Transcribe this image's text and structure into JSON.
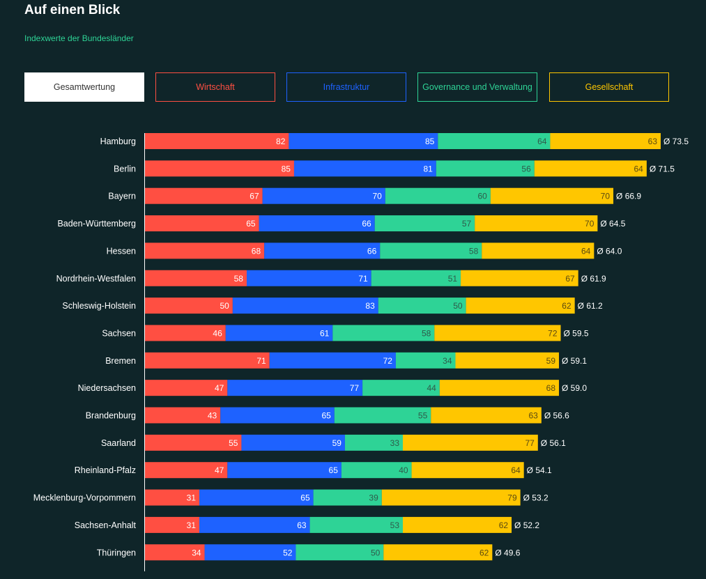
{
  "header": {
    "title": "Auf einen Blick",
    "subtitle": "Indexwerte der Bundesländer"
  },
  "tabs": [
    {
      "label": "Gesamtwertung",
      "color": "#ffffff",
      "active": true
    },
    {
      "label": "Wirtschaft",
      "color": "#ff4f42",
      "active": false
    },
    {
      "label": "Infrastruktur",
      "color": "#1e62ff",
      "active": false
    },
    {
      "label": "Governance und Verwaltung",
      "color": "#2ed396",
      "active": false
    },
    {
      "label": "Gesellschaft",
      "color": "#ffc600",
      "active": false
    }
  ],
  "chart_data": {
    "type": "bar",
    "stacked": true,
    "orientation": "horizontal",
    "grid": false,
    "legend": "top",
    "average_prefix": "Ø",
    "categories": [
      "Hamburg",
      "Berlin",
      "Bayern",
      "Baden-Württemberg",
      "Hessen",
      "Nordrhein-Westfalen",
      "Schleswig-Holstein",
      "Sachsen",
      "Bremen",
      "Niedersachsen",
      "Brandenburg",
      "Saarland",
      "Rheinland-Pfalz",
      "Mecklenburg-Vorpommern",
      "Sachsen-Anhalt",
      "Thüringen"
    ],
    "series": [
      {
        "name": "Wirtschaft",
        "color": "#ff4f42",
        "label_color": "#ffffff",
        "values": [
          82,
          85,
          67,
          65,
          68,
          58,
          50,
          46,
          71,
          47,
          43,
          55,
          47,
          31,
          31,
          34
        ]
      },
      {
        "name": "Infrastruktur",
        "color": "#1e62ff",
        "label_color": "#ffffff",
        "values": [
          85,
          81,
          70,
          66,
          66,
          71,
          83,
          61,
          72,
          77,
          65,
          59,
          65,
          65,
          63,
          52
        ]
      },
      {
        "name": "Governance und Verwaltung",
        "color": "#2ed396",
        "label_color": "#2f5a4a",
        "values": [
          64,
          56,
          60,
          57,
          58,
          51,
          50,
          58,
          34,
          44,
          55,
          33,
          40,
          39,
          53,
          50
        ]
      },
      {
        "name": "Gesellschaft",
        "color": "#ffc600",
        "label_color": "#5a4a10",
        "values": [
          63,
          64,
          70,
          70,
          64,
          67,
          62,
          72,
          59,
          68,
          63,
          77,
          64,
          79,
          62,
          62
        ]
      }
    ],
    "averages": [
      "73.5",
      "71.5",
      "66.9",
      "64.5",
      "64.0",
      "61.9",
      "61.2",
      "59.5",
      "59.1",
      "59.0",
      "56.6",
      "56.1",
      "54.1",
      "53.2",
      "52.2",
      "49.6"
    ]
  }
}
